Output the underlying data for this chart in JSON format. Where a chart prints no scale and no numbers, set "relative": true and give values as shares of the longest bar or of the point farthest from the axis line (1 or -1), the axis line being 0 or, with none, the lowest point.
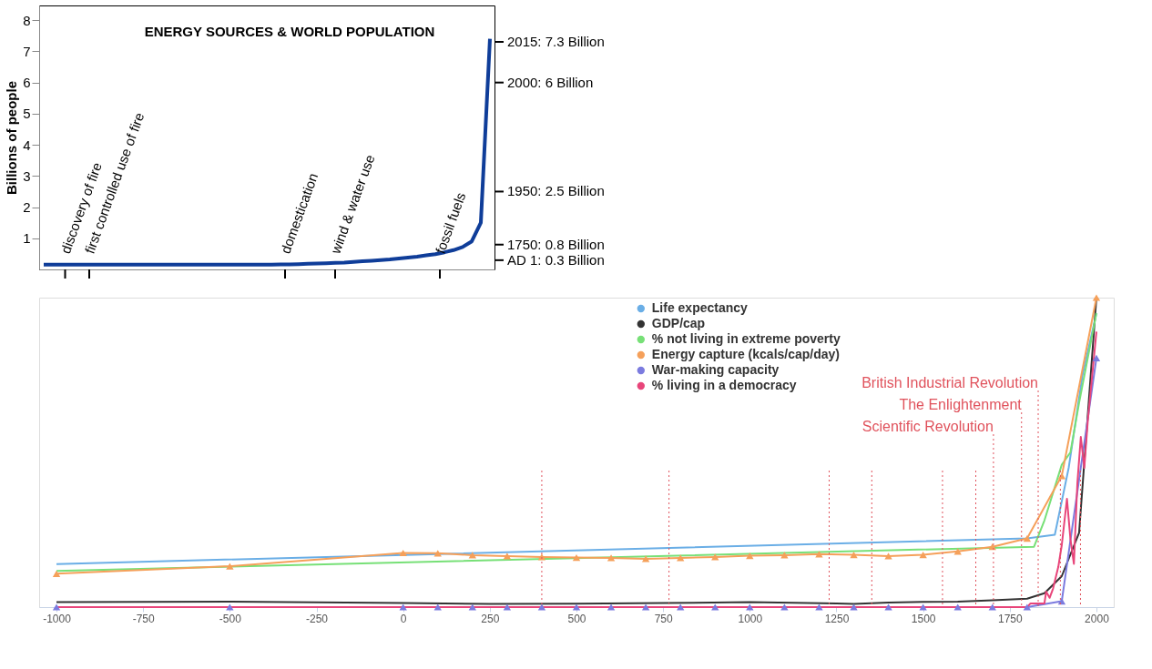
{
  "chart_data": [
    {
      "type": "line",
      "title": "ENERGY SOURCES & WORLD POPULATION",
      "ylabel": "Billions of people",
      "categories": [
        null,
        null,
        null,
        null,
        null,
        null,
        null,
        null,
        null,
        null,
        null,
        null,
        null,
        null,
        null,
        null,
        null,
        null,
        null,
        null,
        null,
        null,
        null,
        null,
        null,
        null,
        null,
        null,
        null,
        null,
        null,
        null,
        null,
        null,
        null,
        null,
        null,
        null,
        null,
        null,
        null,
        null,
        null,
        null,
        null,
        null,
        null,
        null,
        null,
        null
      ],
      "series": [
        {
          "color": "#0f3d99",
          "values": [
            0.15,
            0.15,
            0.15,
            0.15,
            0.15,
            0.15,
            0.15,
            0.15,
            0.15,
            0.15,
            0.15,
            0.15,
            0.15,
            0.15,
            0.15,
            0.15,
            0.15,
            0.15,
            0.15,
            0.15,
            0.15,
            0.15,
            0.15,
            0.15,
            0.15,
            0.15,
            0.16,
            0.16,
            0.17,
            0.18,
            0.19,
            0.2,
            0.21,
            0.22,
            0.24,
            0.26,
            0.28,
            0.3,
            0.32,
            0.35,
            0.38,
            0.41,
            0.45,
            0.49,
            0.55,
            0.62,
            0.72,
            0.9,
            1.5,
            7.4
          ]
        }
      ],
      "ylim": [
        0,
        8.47
      ],
      "yticks": [
        1,
        2,
        3,
        4,
        5,
        6,
        7,
        8
      ],
      "annotations": [
        "discovery of fire",
        "first controlled use of fire",
        "domestication",
        "wind & water use",
        "fossil fuels",
        "2015:  7.3 Billion",
        "2000:  6 Billion",
        "1950:  2.5 Billion",
        "1750:  0.8 Billion",
        "AD 1:  0.3 Billion"
      ],
      "grid": false,
      "tick_labels": "y",
      "marker": "none",
      "line_style": "solid"
    },
    {
      "type": "line",
      "relative": true,
      "xlim": [
        -1050,
        2050
      ],
      "xticks": [
        -1000,
        -750,
        -500,
        -250,
        0,
        250,
        500,
        750,
        1000,
        1250,
        1500,
        1750,
        2000
      ],
      "series": [
        {
          "name": "Life expectancy",
          "color": "#6aaee6",
          "marker": "none",
          "x": [
            -1000,
            1800,
            1880,
            1920,
            1960,
            2000
          ],
          "values": [
            0.139,
            0.222,
            0.234,
            0.45,
            0.75,
            0.95
          ]
        },
        {
          "name": "GDP/cap",
          "color": "#333333",
          "marker": "none",
          "x": [
            -1000,
            -500,
            0,
            250,
            500,
            750,
            1000,
            1250,
            1300,
            1400,
            1500,
            1600,
            1700,
            1800,
            1850,
            1900,
            1950,
            2000
          ],
          "values": [
            0.016,
            0.018,
            0.013,
            0.01,
            0.011,
            0.013,
            0.016,
            0.012,
            0.01,
            0.015,
            0.017,
            0.018,
            0.022,
            0.027,
            0.045,
            0.1,
            0.24,
            1.0
          ]
        },
        {
          "name": "% not living in extreme poverty",
          "color": "#77e077",
          "marker": "none",
          "x": [
            -1000,
            1820,
            1850,
            1900,
            1925,
            1950,
            2000
          ],
          "values": [
            0.117,
            0.195,
            0.28,
            0.46,
            0.5,
            0.66,
            0.95
          ]
        },
        {
          "name": "Energy capture (kcals/cap/day)",
          "color": "#f5a05a",
          "marker": "triangle",
          "x": [
            -1000,
            -500,
            0,
            100,
            200,
            300,
            400,
            500,
            600,
            700,
            800,
            900,
            1000,
            1100,
            1200,
            1300,
            1400,
            1500,
            1600,
            1700,
            1800,
            1900,
            2000
          ],
          "values": [
            0.108,
            0.132,
            0.175,
            0.174,
            0.168,
            0.165,
            0.162,
            0.16,
            0.159,
            0.156,
            0.159,
            0.162,
            0.166,
            0.168,
            0.171,
            0.169,
            0.165,
            0.169,
            0.18,
            0.195,
            0.222,
            0.424,
            1.0
          ]
        },
        {
          "name": "War-making capacity",
          "color": "#7b7bdf",
          "marker": "triangle",
          "x": [
            -1000,
            -500,
            0,
            100,
            200,
            300,
            400,
            500,
            600,
            700,
            800,
            900,
            1000,
            1100,
            1200,
            1300,
            1400,
            1500,
            1600,
            1700,
            1800,
            1900,
            2000
          ],
          "values": [
            0,
            0,
            0,
            0,
            0,
            0,
            0,
            0,
            0,
            0,
            0,
            0,
            0,
            0,
            0,
            0,
            0,
            0,
            0,
            0,
            0,
            0.019,
            0.805
          ]
        },
        {
          "name": "% living in a democracy",
          "color": "#e8457a",
          "marker": "none",
          "x": [
            -1000,
            1800,
            1810,
            1850,
            1855,
            1865,
            1875,
            1890,
            1900,
            1910,
            1915,
            1925,
            1935,
            1945,
            1955,
            1965,
            1975,
            2000
          ],
          "values": [
            0,
            0,
            0.012,
            0.012,
            0.05,
            0.03,
            0.06,
            0.13,
            0.2,
            0.3,
            0.35,
            0.22,
            0.14,
            0.4,
            0.55,
            0.45,
            0.6,
            0.89
          ]
        }
      ],
      "ref_lines": [
        {
          "axis": "x",
          "value": 400,
          "color": "#e0525c",
          "line_style": "dotted"
        },
        {
          "axis": "x",
          "value": 767,
          "color": "#e0525c",
          "line_style": "dotted"
        },
        {
          "axis": "x",
          "value": 1229,
          "color": "#e0525c",
          "line_style": "dotted"
        },
        {
          "axis": "x",
          "value": 1352,
          "color": "#e0525c",
          "line_style": "dotted"
        },
        {
          "axis": "x",
          "value": 1556,
          "color": "#e0525c",
          "line_style": "dotted"
        },
        {
          "axis": "x",
          "value": 1652,
          "color": "#e0525c",
          "line_style": "dotted"
        },
        {
          "axis": "x",
          "value": 1703,
          "label": "Scientific Revolution",
          "color": "#e0525c",
          "line_style": "dotted"
        },
        {
          "axis": "x",
          "value": 1784,
          "label": "The Enlightenment",
          "color": "#e0525c",
          "line_style": "dotted"
        },
        {
          "axis": "x",
          "value": 1832,
          "label": "British Industrial Revolution",
          "color": "#e0525c",
          "line_style": "dotted"
        },
        {
          "axis": "x",
          "value": 1896,
          "color": "#e0525c",
          "line_style": "dotted"
        },
        {
          "axis": "x",
          "value": 1954,
          "color": "#e0525c",
          "line_style": "dotted"
        }
      ],
      "grid": false,
      "legend": "top right",
      "line_style": "solid"
    }
  ]
}
